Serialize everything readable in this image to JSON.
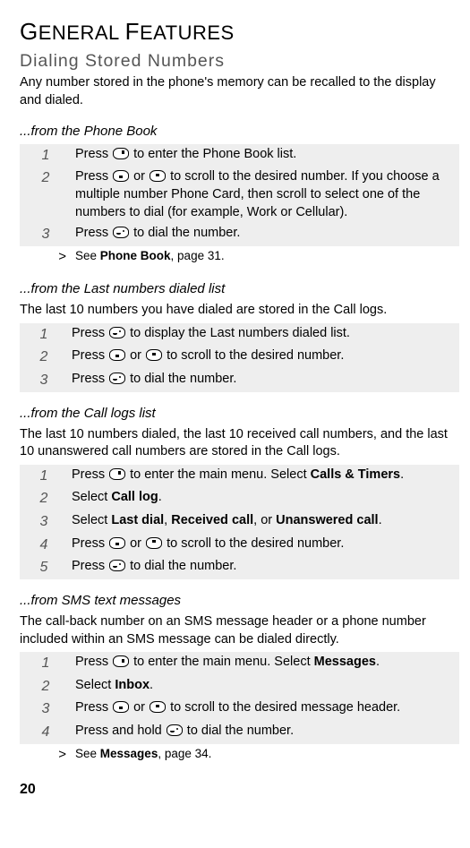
{
  "page": {
    "h1_a": "G",
    "h1_b": "ENERAL ",
    "h1_c": "F",
    "h1_d": "EATURES",
    "h2": "Dialing Stored Numbers",
    "intro": "Any number stored in the phone's memory can be recalled to the display and dialed.",
    "pagenum": "20"
  },
  "s1": {
    "head": "...from the Phone Book",
    "r1a": "Press ",
    "r1b": " to enter the Phone Book list.",
    "r2a": "Press ",
    "r2b": " or ",
    "r2c": " to scroll to the desired number. If you choose a multiple number Phone Card, then scroll to select one of the numbers to dial (for example, Work or Cellular).",
    "r3a": "Press ",
    "r3b": " to dial the number.",
    "see_a": "See ",
    "see_b": "Phone Book",
    "see_c": ", page 31."
  },
  "s2": {
    "head": "...from the Last numbers dialed list",
    "sub": "The last 10 numbers you have dialed are stored in the Call logs.",
    "r1a": "Press ",
    "r1b": " to display the Last numbers dialed list.",
    "r2a": "Press ",
    "r2b": " or ",
    "r2c": " to scroll to the desired number.",
    "r3a": "Press ",
    "r3b": " to dial the number."
  },
  "s3": {
    "head": "...from the Call logs list",
    "sub": "The last 10 numbers dialed, the last 10 received call numbers, and the last 10 unanswered call numbers are stored in the Call logs.",
    "r1a": "Press ",
    "r1b": " to enter the main menu. Select ",
    "r1c": "Calls & Timers",
    "r1d": ".",
    "r2a": "Select ",
    "r2b": "Call log",
    "r2c": ".",
    "r3a": "Select ",
    "r3b": "Last dial",
    "r3c": ", ",
    "r3d": "Received call",
    "r3e": ", or ",
    "r3f": "Unanswered call",
    "r3g": ".",
    "r4a": "Press ",
    "r4b": " or ",
    "r4c": " to scroll to the desired number.",
    "r5a": "Press ",
    "r5b": " to dial the number."
  },
  "s4": {
    "head": "...from SMS text messages",
    "sub": "The call-back number on an SMS message header or a phone number included within an SMS message can be dialed directly.",
    "r1a": "Press ",
    "r1b": " to enter the main menu. Select ",
    "r1c": "Messages",
    "r1d": ".",
    "r2a": "Select ",
    "r2b": "Inbox",
    "r2c": ".",
    "r3a": "Press ",
    "r3b": " or ",
    "r3c": " to scroll to the desired message header.",
    "r4a": "Press and hold ",
    "r4b": " to dial the number.",
    "see_a": "See ",
    "see_b": "Messages",
    "see_c": ", page 34."
  },
  "nums": {
    "n1": "1",
    "n2": "2",
    "n3": "3",
    "n4": "4",
    "n5": "5",
    "gt": ">"
  }
}
